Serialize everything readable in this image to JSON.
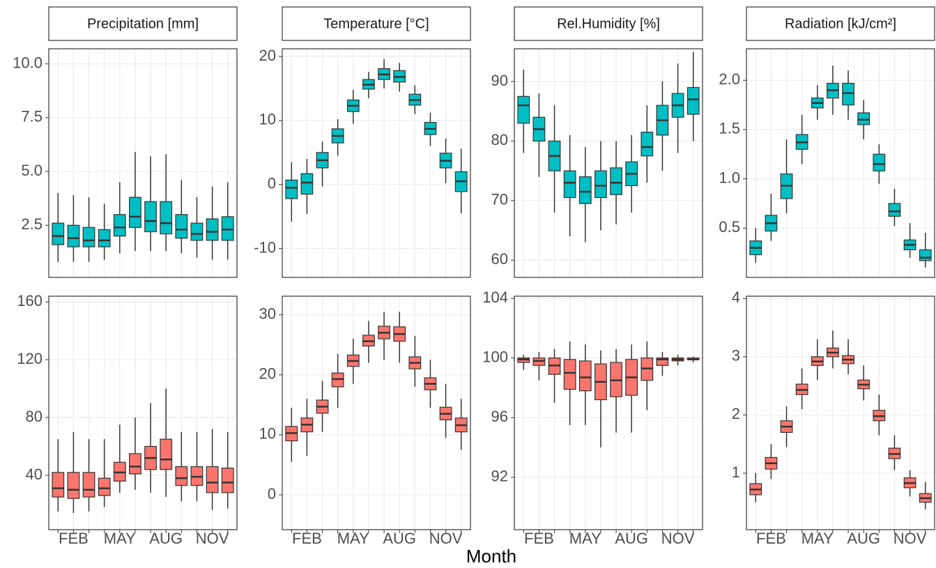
{
  "xlabel": "Month",
  "chart_data": [
    {
      "type": "boxplot",
      "title": "Precipitation [mm]",
      "color": "#00BFC4",
      "ylim": [
        0.08,
        10.7
      ],
      "yticks": [
        2.5,
        {
          "value": 5,
          "label": "5.0"
        },
        7.5,
        {
          "value": 10,
          "label": "10.0"
        }
      ],
      "grid": true,
      "whislo": [
        0.8,
        0.8,
        0.8,
        0.9,
        1.2,
        1.3,
        1.3,
        1.3,
        1.2,
        1.0,
        0.9,
        0.9
      ],
      "q1": [
        1.6,
        1.5,
        1.5,
        1.5,
        2.0,
        2.4,
        2.2,
        2.1,
        1.9,
        1.8,
        1.8,
        1.8
      ],
      "median": [
        2.0,
        1.9,
        1.8,
        1.8,
        2.4,
        2.9,
        2.7,
        2.6,
        2.3,
        2.1,
        2.2,
        2.3
      ],
      "q3": [
        2.6,
        2.5,
        2.4,
        2.3,
        3.0,
        3.8,
        3.6,
        3.6,
        3.0,
        2.6,
        2.8,
        2.9
      ],
      "whishi": [
        4.0,
        3.9,
        3.8,
        3.5,
        4.5,
        5.9,
        5.7,
        5.8,
        4.6,
        3.8,
        4.3,
        4.5
      ]
    },
    {
      "type": "boxplot",
      "title": "Temperature [°C]",
      "color": "#00BFC4",
      "ylim": [
        -14.5,
        21.2
      ],
      "yticks": [
        -10,
        0,
        10,
        20
      ],
      "grid": true,
      "whislo": [
        -5.8,
        -4.6,
        -0.3,
        4.5,
        9.5,
        13.5,
        15.0,
        14.5,
        11.0,
        6.0,
        0.2,
        -4.5
      ],
      "q1": [
        -2.2,
        -1.5,
        2.6,
        6.5,
        11.4,
        14.9,
        16.4,
        16.0,
        12.4,
        7.8,
        2.6,
        -1.1
      ],
      "median": [
        -0.5,
        0.3,
        3.8,
        7.6,
        12.3,
        15.6,
        17.2,
        16.8,
        13.2,
        8.7,
        3.7,
        0.5
      ],
      "q3": [
        0.7,
        1.7,
        5.0,
        8.7,
        13.2,
        16.4,
        18.1,
        17.8,
        14.1,
        9.7,
        4.9,
        2.0
      ],
      "whishi": [
        3.5,
        4.0,
        6.7,
        10.2,
        14.8,
        17.6,
        19.6,
        19.0,
        15.5,
        11.2,
        7.2,
        5.6
      ]
    },
    {
      "type": "boxplot",
      "title": "Rel.Humidity [%]",
      "color": "#00BFC4",
      "ylim": [
        57.1,
        95.5
      ],
      "yticks": [
        60,
        70,
        80,
        90
      ],
      "grid": true,
      "whislo": [
        78,
        74,
        68,
        64,
        63,
        65,
        66,
        68,
        73,
        75,
        78,
        80
      ],
      "q1": [
        83,
        80,
        75,
        70.5,
        69.5,
        70.5,
        71,
        72.5,
        77.5,
        81,
        84,
        84.5
      ],
      "median": [
        86,
        82,
        77.5,
        73,
        71.5,
        72.5,
        73,
        74.5,
        79,
        83.5,
        86,
        87
      ],
      "q3": [
        87.5,
        84,
        80,
        75,
        74,
        75,
        75.5,
        76.5,
        81.5,
        86,
        88,
        89
      ],
      "whishi": [
        92,
        88,
        86,
        81,
        79,
        80,
        80,
        81,
        86,
        90,
        93,
        95
      ]
    },
    {
      "type": "boxplot",
      "title": "Radiation [kJ/cm²]",
      "color": "#00BFC4",
      "ylim": [
        0,
        2.32
      ],
      "yticks": [
        0.5,
        {
          "value": 1,
          "label": "1.0"
        },
        1.5,
        {
          "value": 2,
          "label": "2.0"
        }
      ],
      "grid": true,
      "whislo": [
        0.15,
        0.37,
        0.65,
        1.15,
        1.6,
        1.65,
        1.6,
        1.4,
        0.95,
        0.52,
        0.2,
        0.1
      ],
      "q1": [
        0.23,
        0.47,
        0.8,
        1.3,
        1.72,
        1.82,
        1.75,
        1.55,
        1.08,
        0.62,
        0.28,
        0.17
      ],
      "median": [
        0.3,
        0.55,
        0.93,
        1.37,
        1.77,
        1.9,
        1.87,
        1.6,
        1.15,
        0.67,
        0.33,
        0.2
      ],
      "q3": [
        0.37,
        0.63,
        1.05,
        1.45,
        1.82,
        1.97,
        1.97,
        1.67,
        1.25,
        0.75,
        0.38,
        0.28
      ],
      "whishi": [
        0.5,
        0.85,
        1.4,
        1.65,
        1.95,
        2.15,
        2.1,
        1.8,
        1.35,
        0.9,
        0.55,
        0.45
      ]
    },
    {
      "type": "boxplot",
      "color": "#F8766D",
      "ylim": [
        2.4,
        163.9
      ],
      "yticks": [
        40,
        80,
        120,
        160
      ],
      "grid": true,
      "categories": [
        null,
        "FEB",
        null,
        null,
        "MAY",
        null,
        null,
        "AUG",
        null,
        null,
        "NOV",
        null
      ],
      "whislo": [
        15,
        14,
        15,
        18,
        28,
        30,
        28,
        25,
        22,
        22,
        16,
        17
      ],
      "q1": [
        25,
        24,
        25,
        26,
        36,
        41,
        44,
        44,
        33,
        33,
        28,
        28
      ],
      "median": [
        31,
        30,
        30,
        31,
        42,
        46,
        52,
        51,
        38,
        39,
        35,
        35
      ],
      "q3": [
        42,
        42,
        42,
        38,
        49,
        55,
        60,
        65,
        46,
        46,
        46,
        45
      ],
      "whishi": [
        65,
        70,
        65,
        65,
        75,
        80,
        90,
        100,
        70,
        70,
        72,
        70
      ]
    },
    {
      "type": "boxplot",
      "color": "#F8766D",
      "ylim": [
        -5.8,
        33.1
      ],
      "yticks": [
        0,
        10,
        20,
        30
      ],
      "grid": true,
      "categories": [
        null,
        "FEB",
        null,
        null,
        "MAY",
        null,
        null,
        "AUG",
        null,
        null,
        "NOV",
        null
      ],
      "whislo": [
        5.5,
        6.5,
        10.5,
        14.5,
        18.5,
        22.0,
        22.5,
        22.0,
        18.0,
        14.5,
        9.5,
        7.5
      ],
      "q1": [
        9.0,
        10.5,
        13.6,
        18.0,
        21.4,
        24.8,
        26.0,
        25.6,
        21.0,
        17.5,
        12.5,
        10.5
      ],
      "median": [
        10.3,
        11.7,
        14.7,
        19.3,
        22.3,
        25.6,
        27.0,
        26.8,
        22.0,
        18.5,
        13.5,
        11.6
      ],
      "q3": [
        11.4,
        12.8,
        15.8,
        20.3,
        23.3,
        26.6,
        28.1,
        28.0,
        23.0,
        19.5,
        14.6,
        12.8
      ],
      "whishi": [
        14.5,
        16.0,
        19.0,
        23.5,
        26.0,
        29.0,
        30.5,
        30.5,
        26.5,
        22.5,
        18.5,
        16.0
      ]
    },
    {
      "type": "boxplot",
      "color": "#F8766D",
      "ylim": [
        88.49,
        104.14
      ],
      "yticks": [
        92,
        96,
        100,
        104
      ],
      "grid": true,
      "categories": [
        null,
        "FEB",
        null,
        null,
        "MAY",
        null,
        null,
        "AUG",
        null,
        null,
        "NOV",
        null
      ],
      "whislo": [
        99.2,
        98.5,
        97.0,
        95.5,
        95.5,
        94.0,
        95.0,
        95.0,
        96.5,
        98.8,
        99.5,
        99.7
      ],
      "q1": [
        99.7,
        99.5,
        98.9,
        97.9,
        97.8,
        97.2,
        97.4,
        97.5,
        98.5,
        99.5,
        99.8,
        99.9
      ],
      "median": [
        99.9,
        99.8,
        99.5,
        99.0,
        98.7,
        98.4,
        98.5,
        98.7,
        99.3,
        99.9,
        99.9,
        99.9
      ],
      "q3": [
        100,
        100,
        100,
        99.9,
        99.8,
        99.6,
        99.7,
        99.9,
        100,
        100,
        100,
        100
      ],
      "whishi": [
        100.2,
        100.4,
        100.6,
        101.1,
        100.9,
        100.5,
        100.6,
        100.9,
        101.1,
        100.4,
        100.2,
        100.1
      ]
    },
    {
      "type": "boxplot",
      "color": "#F8766D",
      "ylim": [
        0.03,
        4.04
      ],
      "yticks": [
        1,
        2,
        3,
        4
      ],
      "grid": true,
      "categories": [
        null,
        "FEB",
        null,
        null,
        "MAY",
        null,
        null,
        "AUG",
        null,
        null,
        "NOV",
        null
      ],
      "whislo": [
        0.5,
        0.9,
        1.45,
        2.1,
        2.6,
        2.8,
        2.7,
        2.25,
        1.65,
        1.05,
        0.6,
        0.38
      ],
      "q1": [
        0.63,
        1.07,
        1.7,
        2.35,
        2.85,
        3.0,
        2.88,
        2.45,
        1.9,
        1.25,
        0.75,
        0.5
      ],
      "median": [
        0.72,
        1.17,
        1.8,
        2.43,
        2.92,
        3.07,
        2.95,
        2.52,
        1.98,
        1.33,
        0.83,
        0.57
      ],
      "q3": [
        0.82,
        1.27,
        1.9,
        2.53,
        3.0,
        3.15,
        3.02,
        2.6,
        2.08,
        1.43,
        0.92,
        0.65
      ],
      "whishi": [
        1.0,
        1.5,
        2.15,
        2.8,
        3.3,
        3.45,
        3.3,
        2.85,
        2.35,
        1.65,
        1.05,
        0.85
      ]
    }
  ]
}
